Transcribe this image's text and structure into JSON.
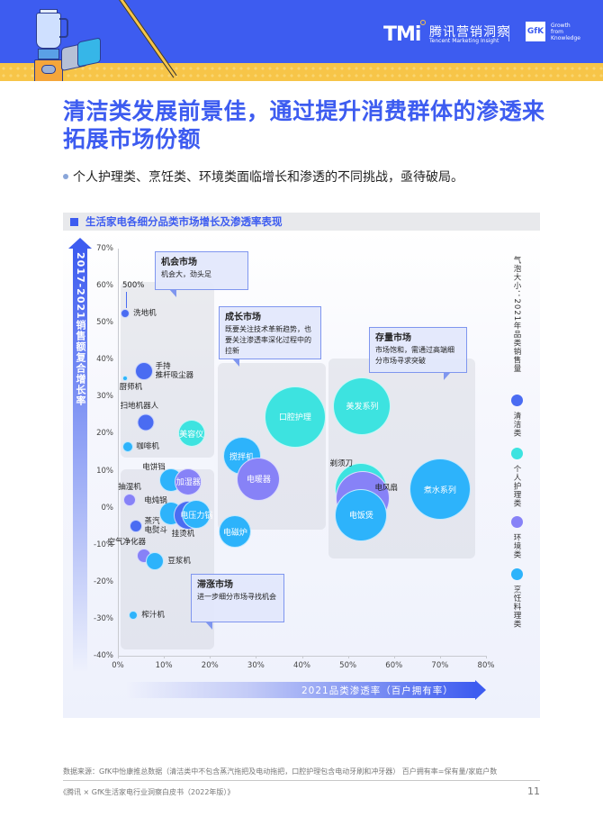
{
  "header": {
    "tmi_logo": "TMi",
    "tmi_cn": "腾讯营销洞察",
    "tmi_en": "Tencent Marketing Insight",
    "gfk_logo": "GfK",
    "gfk_tagline": "Growth\nfrom\nKnowledge"
  },
  "title": "清洁类发展前景佳，通过提升消费群体的渗透来拓展市场份额",
  "subtitle": "个人护理类、烹饪类、环境类面临增长和渗透的不同挑战，亟待破局。",
  "chart_card": {
    "heading": "生活家电各细分品类市场增长及渗透率表现"
  },
  "chart_data": {
    "type": "scatter",
    "subtype": "bubble",
    "title": "生活家电各细分品类市场增长及渗透率表现",
    "xlabel": "2021品类渗透率（百户拥有率）",
    "ylabel": "2017-2021销售额复合增长率",
    "size_label": "气泡大小：2021年品类销售量",
    "xlim": [
      0,
      80
    ],
    "ylim": [
      -40,
      70
    ],
    "x_ticks": [
      "0%",
      "10%",
      "20%",
      "30%",
      "40%",
      "50%",
      "60%",
      "70%",
      "80%"
    ],
    "y_ticks": [
      "70%",
      "60%",
      "50%",
      "40%",
      "30%",
      "20%",
      "10%",
      "0%",
      "-10%",
      "-20%",
      "-30%",
      "-40%"
    ],
    "grid": false,
    "legend_position": "right",
    "categories": [
      {
        "name": "清洁类",
        "color": "#4a6cf2"
      },
      {
        "name": "个人护理类",
        "color": "#3de3e0"
      },
      {
        "name": "环境类",
        "color": "#8782f7"
      },
      {
        "name": "烹饪料理类",
        "color": "#2db3fb"
      }
    ],
    "annotations": [
      {
        "text": "500%",
        "note": "洗地机 actual growth (axis-clipped)"
      }
    ],
    "points": [
      {
        "name": "洗地机",
        "category": "清洁类",
        "x": 1.6,
        "y": 52.5,
        "size": 5,
        "label_inside": false,
        "label_note": "500%"
      },
      {
        "name": "手持推杆吸尘器",
        "category": "清洁类",
        "x": 5.6,
        "y": 37,
        "size": 10,
        "label_inside": false
      },
      {
        "name": "厨师机",
        "category": "烹饪料理类",
        "x": 1.5,
        "y": 35,
        "size": 3,
        "label_inside": false
      },
      {
        "name": "扫地机器人",
        "category": "清洁类",
        "x": 6,
        "y": 23,
        "size": 9.5,
        "label_inside": false
      },
      {
        "name": "美容仪",
        "category": "个人护理类",
        "x": 16,
        "y": 20,
        "size": 15,
        "label_inside": true
      },
      {
        "name": "咖啡机",
        "category": "烹饪料理类",
        "x": 2.2,
        "y": 16.5,
        "size": 6,
        "label_inside": false
      },
      {
        "name": "电饼铛",
        "category": "烹饪料理类",
        "x": 11.6,
        "y": 7.5,
        "size": 13,
        "label_inside": false
      },
      {
        "name": "加湿器",
        "category": "环境类",
        "x": 15.3,
        "y": 7,
        "size": 15,
        "label_inside": true
      },
      {
        "name": "抽湿机",
        "category": "环境类",
        "x": 2.6,
        "y": 2,
        "size": 7,
        "label_inside": false
      },
      {
        "name": "电炖锅",
        "category": "烹饪料理类",
        "x": 11.6,
        "y": -1.5,
        "size": 13,
        "label_inside": false
      },
      {
        "name": "挂烫机",
        "category": "清洁类",
        "x": 15.2,
        "y": -2,
        "size": 16,
        "label_inside": false
      },
      {
        "name": "电压力锅",
        "category": "烹饪料理类",
        "x": 17.1,
        "y": -1.8,
        "size": 16,
        "label_inside": true
      },
      {
        "name": "蒸汽电熨斗",
        "category": "清洁类",
        "x": 4,
        "y": -5,
        "size": 7,
        "label_inside": false
      },
      {
        "name": "空气净化器",
        "category": "环境类",
        "x": 5.6,
        "y": -13,
        "size": 8,
        "label_inside": false
      },
      {
        "name": "豆浆机",
        "category": "烹饪料理类",
        "x": 8.1,
        "y": -14.5,
        "size": 10,
        "label_inside": false
      },
      {
        "name": "榨汁机",
        "category": "烹饪料理类",
        "x": 3.4,
        "y": -29,
        "size": 5,
        "label_inside": false
      },
      {
        "name": "口腔护理",
        "category": "个人护理类",
        "x": 38.5,
        "y": 24.5,
        "size": 34,
        "label_inside": true
      },
      {
        "name": "搅拌机",
        "category": "烹饪料理类",
        "x": 26.9,
        "y": 14,
        "size": 21,
        "label_inside": true
      },
      {
        "name": "电暖器",
        "category": "环境类",
        "x": 30.6,
        "y": 7.8,
        "size": 24,
        "label_inside": true
      },
      {
        "name": "电磁炉",
        "category": "烹饪料理类",
        "x": 25.5,
        "y": -6.5,
        "size": 18,
        "label_inside": true
      },
      {
        "name": "美发系列",
        "category": "个人护理类",
        "x": 53.1,
        "y": 27.5,
        "size": 32,
        "label_inside": true
      },
      {
        "name": "剃须刀",
        "category": "个人护理类",
        "x": 52.9,
        "y": 5,
        "size": 29,
        "label_inside": false
      },
      {
        "name": "电风扇",
        "category": "环境类",
        "x": 53.3,
        "y": 2.5,
        "size": 30,
        "label_inside": false
      },
      {
        "name": "电饭煲",
        "category": "烹饪料理类",
        "x": 52.9,
        "y": -2,
        "size": 29,
        "label_inside": true
      },
      {
        "name": "煮水系列",
        "category": "烹饪料理类",
        "x": 70,
        "y": 5,
        "size": 34,
        "label_inside": true
      }
    ],
    "regions": [
      {
        "name": "机会市场",
        "desc": "机会大，劲头足"
      },
      {
        "name": "成长市场",
        "desc": "既要关注技术革新趋势，也要关注渗透率深化过程中的拉新"
      },
      {
        "name": "存量市场",
        "desc": "市场饱和，需通过高端细分市场寻求突破"
      },
      {
        "name": "滞涨市场",
        "desc": "进一步细分市场寻找机会"
      }
    ]
  },
  "chart_labels": {
    "y_axis_arrow": "2017-2021销售额复合增长率",
    "x_axis_arrow": "2021品类渗透率（百户拥有率）",
    "legend_title": "气泡大小：2021年品类销售量",
    "annotation_500": "500%"
  },
  "footer": {
    "source": "数据来源：GfK中怡康推总数据（清洁类中不包含蒸汽拖把及电动拖把，口腔护理包含电动牙刷和冲牙器）  百户拥有率=保有量/家庭户数",
    "publication": "《腾讯 × GfK生活家电行业洞察白皮书（2022年版）》",
    "page_number": "11"
  }
}
